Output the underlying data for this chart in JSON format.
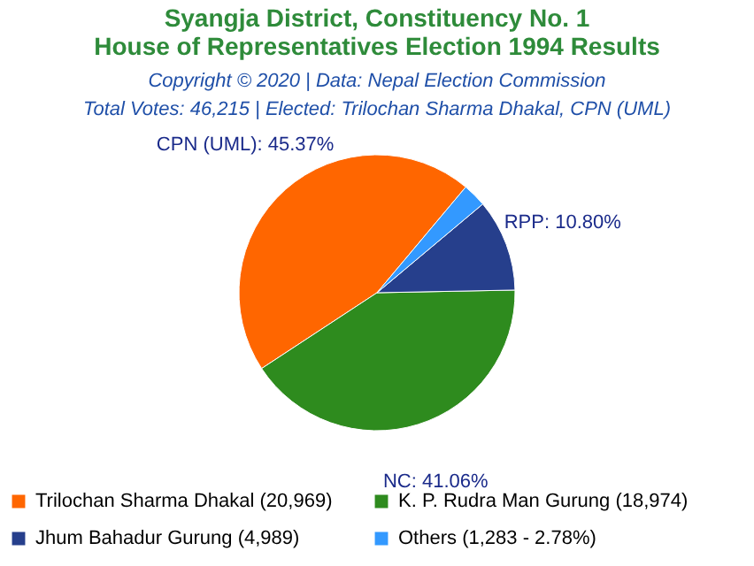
{
  "chart_data": {
    "type": "pie",
    "title": "Syangja District, Constituency No. 1\nHouse of Representatives Election 1994 Results",
    "subtitle": "Copyright © 2020 | Data: Nepal Election Commission",
    "annotations": [
      "Total Votes: 46,215 | Elected: Trilochan Sharma Dhakal, CPN (UML)"
    ],
    "categories": [
      "Trilochan Sharma Dhakal (20,969)",
      "K. P. Rudra Man Gurung (18,974)",
      "Jhum Bahadur Gurung (4,989)",
      "Others (1,283 - 2.78%)"
    ],
    "values": [
      45.37,
      41.06,
      10.8,
      2.78
    ],
    "colors": [
      "#ff6600",
      "#2e8b1e",
      "#263f8c",
      "#3399ff"
    ],
    "value_labels": [
      "CPN (UML): 45.37%",
      "NC: 41.06%",
      "RPP: 10.80%",
      null
    ],
    "legend": "bottom"
  }
}
